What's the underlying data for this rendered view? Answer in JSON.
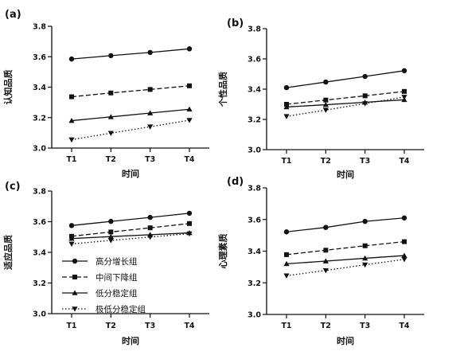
{
  "chart_data": [
    {
      "type": "line",
      "panel_label": "(a)",
      "xlabel": "时间",
      "ylabel": "认知品质",
      "categories": [
        "T1",
        "T2",
        "T3",
        "T4"
      ],
      "ylim": [
        3.0,
        3.8
      ],
      "yticks": [
        "3.0",
        "3.2",
        "3.4",
        "3.6",
        "3.8"
      ],
      "grid": false,
      "series": [
        {
          "name": "高分增长组",
          "values": [
            3.585,
            3.607,
            3.628,
            3.652
          ]
        },
        {
          "name": "中间下降组",
          "values": [
            3.337,
            3.362,
            3.385,
            3.409
          ]
        },
        {
          "name": "低分稳定组",
          "values": [
            3.18,
            3.205,
            3.23,
            3.255
          ]
        },
        {
          "name": "极低分稳定组",
          "values": [
            3.055,
            3.098,
            3.14,
            3.183
          ]
        }
      ]
    },
    {
      "type": "line",
      "panel_label": "(b)",
      "xlabel": "时间",
      "ylabel": "个性品质",
      "categories": [
        "T1",
        "T2",
        "T3",
        "T4"
      ],
      "ylim": [
        3.0,
        3.8
      ],
      "yticks": [
        "3.0",
        "3.2",
        "3.4",
        "3.6",
        "3.8"
      ],
      "grid": false,
      "series": [
        {
          "name": "高分增长组",
          "values": [
            3.41,
            3.447,
            3.484,
            3.522
          ]
        },
        {
          "name": "中间下降组",
          "values": [
            3.3,
            3.328,
            3.356,
            3.385
          ]
        },
        {
          "name": "低分稳定组",
          "values": [
            3.282,
            3.297,
            3.313,
            3.33
          ]
        },
        {
          "name": "极低分稳定组",
          "values": [
            3.22,
            3.262,
            3.305,
            3.348
          ]
        }
      ]
    },
    {
      "type": "line",
      "panel_label": "(c)",
      "xlabel": "时间",
      "ylabel": "适应品质",
      "categories": [
        "T1",
        "T2",
        "T3",
        "T4"
      ],
      "ylim": [
        3.0,
        3.8
      ],
      "yticks": [
        "3.0",
        "3.2",
        "3.4",
        "3.6",
        "3.8"
      ],
      "grid": false,
      "series": [
        {
          "name": "高分增长组",
          "values": [
            3.575,
            3.602,
            3.628,
            3.655
          ]
        },
        {
          "name": "中间下降组",
          "values": [
            3.505,
            3.533,
            3.56,
            3.588
          ]
        },
        {
          "name": "低分稳定组",
          "values": [
            3.49,
            3.503,
            3.515,
            3.527
          ]
        },
        {
          "name": "极低分稳定组",
          "values": [
            3.455,
            3.478,
            3.5,
            3.522
          ]
        }
      ]
    },
    {
      "type": "line",
      "panel_label": "(d)",
      "xlabel": "时间",
      "ylabel": "心理素质",
      "categories": [
        "T1",
        "T2",
        "T3",
        "T4"
      ],
      "ylim": [
        3.0,
        3.8
      ],
      "yticks": [
        "3.0",
        "3.2",
        "3.4",
        "3.6",
        "3.8"
      ],
      "grid": false,
      "series": [
        {
          "name": "高分增长组",
          "values": [
            3.522,
            3.55,
            3.588,
            3.61
          ]
        },
        {
          "name": "中间下降组",
          "values": [
            3.378,
            3.406,
            3.434,
            3.46
          ]
        },
        {
          "name": "低分稳定组",
          "values": [
            3.32,
            3.337,
            3.355,
            3.372
          ]
        },
        {
          "name": "极低分稳定组",
          "values": [
            3.245,
            3.278,
            3.314,
            3.348
          ]
        }
      ]
    }
  ],
  "legend": {
    "placement": "bottom-left of panel (c)",
    "entries": [
      "高分增长组",
      "中间下降组",
      "低分稳定组",
      "极低分稳定组"
    ]
  },
  "series_styles": [
    {
      "line": "solid",
      "marker": "circle"
    },
    {
      "line": "dashed",
      "marker": "square"
    },
    {
      "line": "solid",
      "marker": "triangle-up"
    },
    {
      "line": "dotted",
      "marker": "triangle-down"
    }
  ],
  "colors": {
    "ink": "#111111",
    "background": "#ffffff"
  }
}
